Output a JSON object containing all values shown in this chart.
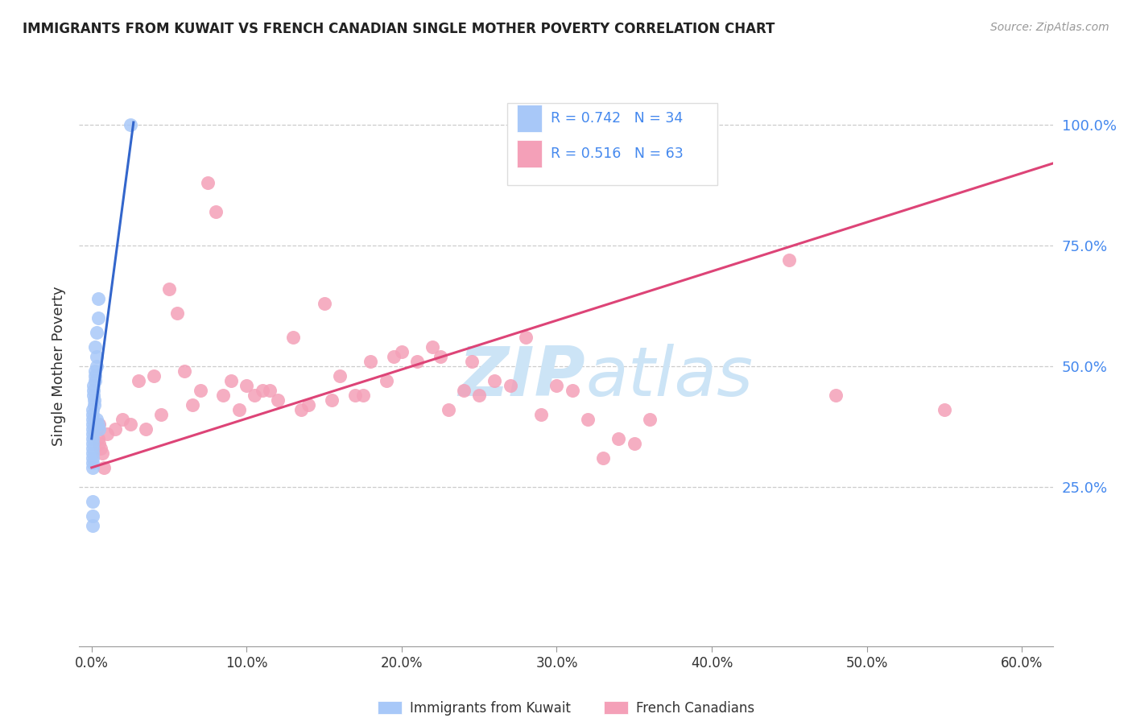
{
  "title": "IMMIGRANTS FROM KUWAIT VS FRENCH CANADIAN SINGLE MOTHER POVERTY CORRELATION CHART",
  "source": "Source: ZipAtlas.com",
  "xlabel_ticks": [
    "0.0%",
    "10.0%",
    "20.0%",
    "30.0%",
    "40.0%",
    "50.0%",
    "60.0%"
  ],
  "xlabel_vals": [
    0,
    10,
    20,
    30,
    40,
    50,
    60
  ],
  "ylabel": "Single Mother Poverty",
  "ylabel_ticks_right": [
    "25.0%",
    "50.0%",
    "75.0%",
    "100.0%"
  ],
  "ylabel_vals_right": [
    25,
    50,
    75,
    100
  ],
  "xlim": [
    -0.8,
    62
  ],
  "ylim": [
    -8,
    108
  ],
  "legend_r1": "R = 0.742",
  "legend_n1": "N = 34",
  "legend_r2": "R = 0.516",
  "legend_n2": "N = 63",
  "color_blue": "#a8c8f8",
  "color_pink": "#f4a0b8",
  "color_blue_line": "#3366cc",
  "color_pink_line": "#dd4477",
  "color_title": "#222222",
  "color_axis_right": "#4488ee",
  "color_legend_text": "#222222",
  "watermark_color": "#cce4f6",
  "background": "#ffffff",
  "blue_dots_x": [
    2.5,
    0.4,
    0.4,
    0.3,
    0.2,
    0.3,
    0.3,
    0.2,
    0.2,
    0.2,
    0.1,
    0.1,
    0.1,
    0.15,
    0.15,
    0.08,
    0.08,
    0.07,
    0.07,
    0.06,
    0.06,
    0.05,
    0.05,
    0.05,
    0.05,
    0.05,
    0.3,
    0.4,
    0.5,
    0.08,
    0.07,
    0.06,
    0.05,
    0.05
  ],
  "blue_dots_y": [
    100,
    64,
    60,
    57,
    54,
    52,
    50,
    49,
    48,
    47,
    46,
    45,
    44,
    43,
    42,
    41,
    40,
    39,
    38,
    37,
    36,
    35,
    34,
    33,
    32,
    31,
    39,
    38,
    37,
    30,
    29,
    22,
    19,
    17
  ],
  "pink_dots_x": [
    7.5,
    8.0,
    5.0,
    5.5,
    13.0,
    15.0,
    20.0,
    18.0,
    22.0,
    28.0,
    30.0,
    3.0,
    4.0,
    6.0,
    7.0,
    8.5,
    9.0,
    10.0,
    11.0,
    12.0,
    14.0,
    16.0,
    17.0,
    19.0,
    21.0,
    23.0,
    24.0,
    25.0,
    26.0,
    27.0,
    29.0,
    31.0,
    32.0,
    0.5,
    1.0,
    1.5,
    2.0,
    2.5,
    3.5,
    4.5,
    6.5,
    9.5,
    10.5,
    11.5,
    13.5,
    15.5,
    17.5,
    22.5,
    24.5,
    48.0,
    55.0,
    35.0,
    33.0,
    34.0,
    36.0,
    0.3,
    0.4,
    0.5,
    0.6,
    0.7,
    0.8,
    19.5,
    45.0
  ],
  "pink_dots_y": [
    88,
    82,
    66,
    61,
    56,
    63,
    53,
    51,
    54,
    56,
    46,
    47,
    48,
    49,
    45,
    44,
    47,
    46,
    45,
    43,
    42,
    48,
    44,
    47,
    51,
    41,
    45,
    44,
    47,
    46,
    40,
    45,
    39,
    38,
    36,
    37,
    39,
    38,
    37,
    40,
    42,
    41,
    44,
    45,
    41,
    43,
    44,
    52,
    51,
    44,
    41,
    34,
    31,
    35,
    39,
    37,
    35,
    34,
    33,
    32,
    29,
    52,
    72
  ],
  "blue_line_x": [
    0.0,
    2.7
  ],
  "blue_line_y": [
    35.0,
    100.5
  ],
  "pink_line_x": [
    0.0,
    62.0
  ],
  "pink_line_y": [
    29.0,
    92.0
  ]
}
